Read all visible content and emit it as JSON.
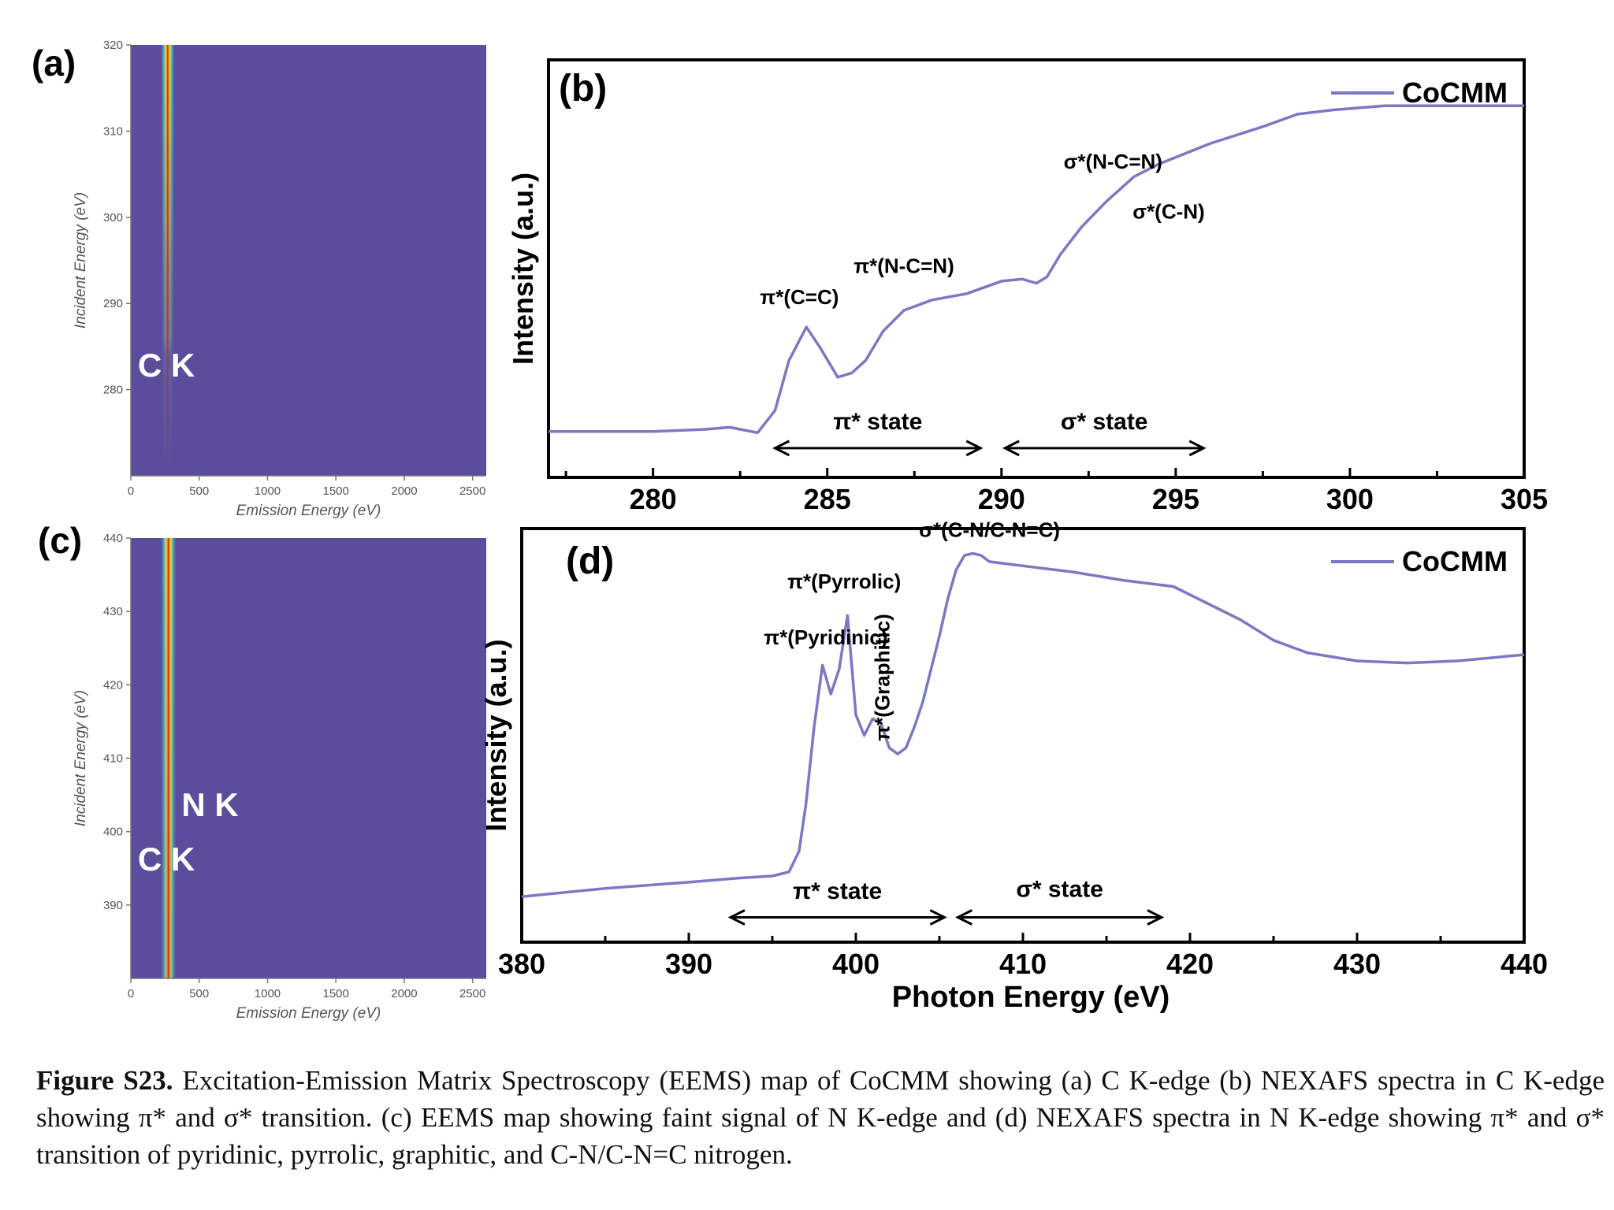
{
  "colors": {
    "line": "#7b78c4",
    "map_bg": "#5b4c9c",
    "axis": "#000000",
    "small_axis": "#777777"
  },
  "chart_data": [
    {
      "panel": "(a)",
      "type": "heatmap",
      "xlabel": "Emission Energy (eV)",
      "ylabel": "Incident Energy (eV)",
      "xlim": [
        0,
        2600
      ],
      "ylim": [
        270,
        320
      ],
      "xticks": [
        0,
        500,
        1000,
        1500,
        2000,
        2500
      ],
      "yticks": [
        280,
        290,
        300,
        310,
        320
      ],
      "edge_labels": [
        {
          "text": "C K",
          "x": 260,
          "y": 281.5
        }
      ],
      "band": {
        "center": 270,
        "halfwidth_top": 50,
        "halfwidth_bottom": 35,
        "intensity": [
          [
            270,
            0
          ],
          [
            284,
            0.15
          ],
          [
            286,
            0.35
          ],
          [
            292,
            0.45
          ],
          [
            300,
            0.65
          ],
          [
            310,
            0.85
          ],
          [
            320,
            1.0
          ]
        ]
      }
    },
    {
      "panel": "(b)",
      "type": "line",
      "xlabel": "",
      "ylabel": "Intensity (a.u.)",
      "xlim": [
        277,
        305
      ],
      "ylim": [
        0,
        1
      ],
      "xticks": [
        280,
        285,
        290,
        295,
        300,
        305
      ],
      "series": [
        {
          "name": "CoCMM",
          "x": [
            277,
            280,
            281.5,
            282.2,
            283,
            283.5,
            283.9,
            284.4,
            284.8,
            285.3,
            285.7,
            286.1,
            286.6,
            287.2,
            288,
            289,
            290,
            290.6,
            291,
            291.3,
            291.7,
            292.3,
            293,
            293.8,
            294.5,
            296,
            297.5,
            298.5,
            299.5,
            301,
            303,
            305
          ],
          "y": [
            0.11,
            0.11,
            0.115,
            0.12,
            0.107,
            0.16,
            0.28,
            0.36,
            0.31,
            0.24,
            0.25,
            0.28,
            0.35,
            0.4,
            0.425,
            0.44,
            0.47,
            0.475,
            0.465,
            0.48,
            0.535,
            0.6,
            0.66,
            0.72,
            0.75,
            0.8,
            0.84,
            0.87,
            0.88,
            0.89,
            0.89,
            0.89
          ]
        }
      ],
      "peak_labels": [
        {
          "text": "π*(C=C)",
          "x": 284.2,
          "y": 0.415
        },
        {
          "text": "π*(N-C=N)",
          "x": 287.2,
          "y": 0.49
        },
        {
          "text": "σ*(N-C=N)",
          "x": 293.2,
          "y": 0.74
        },
        {
          "text": "σ*(C-N)",
          "x": 294.8,
          "y": 0.62
        }
      ],
      "ranges": [
        {
          "label": "π* state",
          "from": 283.5,
          "to": 289.4,
          "y": 0.07,
          "label_y": 0.115
        },
        {
          "label": "σ* state",
          "from": 290.1,
          "to": 295.8,
          "y": 0.07,
          "label_y": 0.115
        }
      ],
      "legend": "top-right"
    },
    {
      "panel": "(c)",
      "type": "heatmap",
      "xlabel": "Emission Energy (eV)",
      "ylabel": "Incident Energy (eV)",
      "xlim": [
        0,
        2600
      ],
      "ylim": [
        380,
        440
      ],
      "xticks": [
        0,
        500,
        1000,
        1500,
        2000,
        2500
      ],
      "yticks": [
        390,
        400,
        410,
        420,
        430,
        440
      ],
      "edge_labels": [
        {
          "text": "N K",
          "x": 580,
          "y": 402.1
        },
        {
          "text": "C K",
          "x": 260,
          "y": 394.7
        }
      ],
      "band": {
        "center": 275,
        "halfwidth_top": 55,
        "halfwidth_bottom": 55,
        "intensity": [
          [
            380,
            0.8
          ],
          [
            400,
            0.85
          ],
          [
            420,
            0.92
          ],
          [
            440,
            1.0
          ]
        ]
      }
    },
    {
      "panel": "(d)",
      "type": "line",
      "xlabel": "Photon Energy (eV)",
      "ylabel": "Intensity (a.u.)",
      "xlim": [
        380,
        440
      ],
      "ylim": [
        0,
        1
      ],
      "xticks": [
        380,
        390,
        400,
        410,
        420,
        430,
        440
      ],
      "series": [
        {
          "name": "CoCMM",
          "x": [
            380,
            385,
            390,
            393,
            395,
            396,
            396.6,
            397,
            397.5,
            398,
            398.5,
            399,
            399.5,
            400,
            400.5,
            401,
            401.5,
            402,
            402.5,
            403,
            403.5,
            404,
            404.5,
            405,
            405.5,
            406,
            406.5,
            407,
            407.5,
            408,
            410,
            413,
            416,
            419,
            421,
            423,
            425,
            427,
            430,
            433,
            436,
            440
          ],
          "y": [
            0.11,
            0.13,
            0.145,
            0.155,
            0.16,
            0.17,
            0.22,
            0.33,
            0.52,
            0.67,
            0.6,
            0.66,
            0.79,
            0.55,
            0.5,
            0.54,
            0.53,
            0.47,
            0.455,
            0.47,
            0.52,
            0.58,
            0.66,
            0.74,
            0.83,
            0.9,
            0.935,
            0.94,
            0.935,
            0.92,
            0.91,
            0.895,
            0.875,
            0.86,
            0.82,
            0.78,
            0.73,
            0.7,
            0.68,
            0.675,
            0.68,
            0.695
          ]
        }
      ],
      "peak_labels": [
        {
          "text": "π*(Pyridinic)",
          "x": 398.2,
          "y": 0.72
        },
        {
          "text": "π*(Pyrrolic)",
          "x": 399.3,
          "y": 0.855
        },
        {
          "text": "π*(Graphitic)",
          "x": 402.0,
          "y": 0.64
        },
        {
          "text": "σ*(C-N/C-N=C)",
          "x": 408.0,
          "y": 0.98
        }
      ],
      "ranges": [
        {
          "label": "π* state",
          "from": 392.5,
          "to": 405.3,
          "y": 0.06,
          "label_y": 0.105
        },
        {
          "label": "σ* state",
          "from": 406.1,
          "to": 418.3,
          "y": 0.06,
          "label_y": 0.11
        }
      ],
      "legend": "top-right"
    }
  ],
  "caption": {
    "label": "Figure S23.",
    "text": "Excitation-Emission Matrix Spectroscopy (EEMS) map of CoCMM showing (a) C K-edge (b) NEXAFS spectra in C K-edge showing π* and σ* transition. (c) EEMS map showing faint signal of N K-edge and (d) NEXAFS spectra in N K-edge showing π* and σ* transition of pyridinic, pyrrolic, graphitic, and C-N/C-N=C nitrogen."
  }
}
